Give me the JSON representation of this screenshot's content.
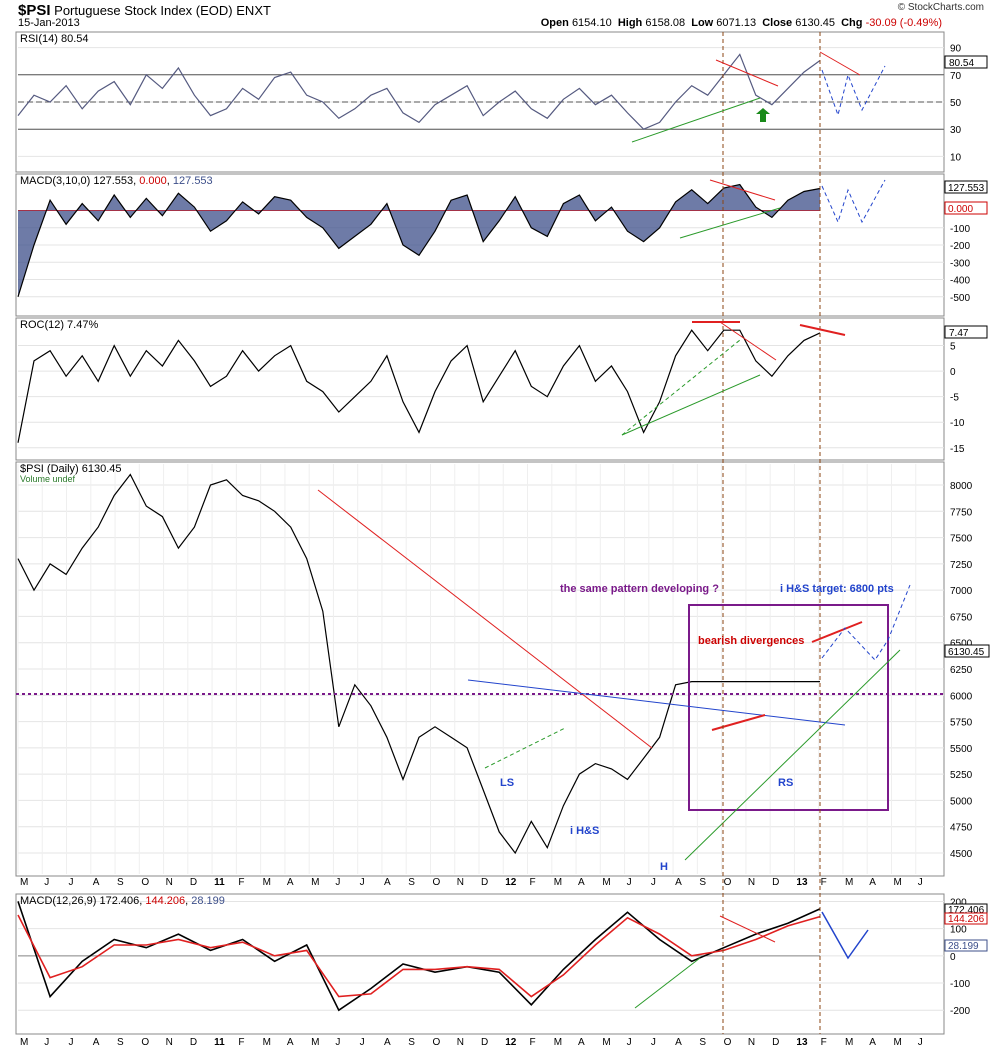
{
  "header": {
    "symbol": "$PSI",
    "title": "Portuguese Stock Index (EOD)",
    "exchange": "ENXT",
    "date": "15-Jan-2013",
    "brand": "© StockCharts.com",
    "open_label": "Open",
    "open": "6154.10",
    "high_label": "High",
    "high": "6158.08",
    "low_label": "Low",
    "low": "6071.13",
    "close_label": "Close",
    "close": "6130.45",
    "chg_label": "Chg",
    "chg": "-30.09 (-0.49%)"
  },
  "x_axis": {
    "months": [
      "M",
      "J",
      "J",
      "A",
      "S",
      "O",
      "N",
      "D",
      "11",
      "F",
      "M",
      "A",
      "M",
      "J",
      "J",
      "A",
      "S",
      "O",
      "N",
      "D",
      "12",
      "F",
      "M",
      "A",
      "M",
      "J",
      "J",
      "A",
      "S",
      "O",
      "N",
      "D",
      "13",
      "F",
      "M",
      "A",
      "M",
      "J"
    ],
    "year_markers": [
      "11",
      "12",
      "13"
    ]
  },
  "colors": {
    "price": "#000000",
    "rsi": "#555a80",
    "hist": "#3d4f8a",
    "red": "#e02020",
    "green": "#2a9a2a",
    "blue": "#2244cc",
    "purple": "#7a1a8a",
    "brown": "#8b4513"
  },
  "chart_data": [
    {
      "type": "line",
      "name": "rsi-panel",
      "legend": "RSI(14) 80.54",
      "last_value_label": "80.54",
      "yticks": [
        10,
        30,
        50,
        70,
        90
      ],
      "ylim": [
        0,
        100
      ],
      "reference_lines": [
        30,
        50,
        70
      ],
      "series": [
        {
          "name": "RSI(14)",
          "x": [
            0,
            0.02,
            0.04,
            0.06,
            0.08,
            0.1,
            0.12,
            0.14,
            0.16,
            0.18,
            0.2,
            0.22,
            0.24,
            0.26,
            0.28,
            0.3,
            0.32,
            0.34,
            0.36,
            0.38,
            0.4,
            0.42,
            0.44,
            0.46,
            0.48,
            0.5,
            0.52,
            0.54,
            0.56,
            0.58,
            0.6,
            0.62,
            0.64,
            0.66,
            0.68,
            0.7,
            0.72,
            0.74,
            0.76,
            0.78,
            0.8,
            0.82,
            0.84,
            0.86,
            0.88,
            0.9,
            0.92,
            0.94,
            0.96,
            0.98,
            1.0
          ],
          "values": [
            40,
            55,
            50,
            62,
            45,
            58,
            65,
            48,
            70,
            60,
            75,
            55,
            40,
            45,
            60,
            52,
            68,
            72,
            55,
            50,
            38,
            45,
            55,
            60,
            42,
            35,
            48,
            55,
            62,
            40,
            50,
            58,
            45,
            38,
            52,
            60,
            48,
            55,
            42,
            30,
            35,
            50,
            62,
            55,
            70,
            85,
            55,
            48,
            60,
            72,
            80.54
          ]
        }
      ]
    },
    {
      "type": "area",
      "name": "macd-3-10-panel",
      "legend_name": "MACD(3,10,0)",
      "legend_v1": "127.553",
      "legend_v2": "0.000",
      "legend_v3": "127.553",
      "last_value_label": "127.553",
      "zero_label": "0.000",
      "yticks": [
        -500,
        -400,
        -300,
        -200,
        -100
      ],
      "ylim": [
        -600,
        200
      ],
      "series": [
        {
          "name": "MACD(3,10,0)",
          "x": [
            0,
            0.02,
            0.04,
            0.06,
            0.08,
            0.1,
            0.12,
            0.14,
            0.16,
            0.18,
            0.2,
            0.22,
            0.24,
            0.26,
            0.28,
            0.3,
            0.32,
            0.34,
            0.36,
            0.38,
            0.4,
            0.42,
            0.44,
            0.46,
            0.48,
            0.5,
            0.52,
            0.54,
            0.56,
            0.58,
            0.6,
            0.62,
            0.64,
            0.66,
            0.68,
            0.7,
            0.72,
            0.74,
            0.76,
            0.78,
            0.8,
            0.82,
            0.84,
            0.86,
            0.88,
            0.9,
            0.92,
            0.94,
            0.96,
            0.98,
            1.0
          ],
          "values": [
            -500,
            -200,
            60,
            -80,
            40,
            -60,
            90,
            -40,
            70,
            -30,
            100,
            20,
            -120,
            -60,
            50,
            -20,
            80,
            60,
            -40,
            -100,
            -220,
            -150,
            -80,
            40,
            -200,
            -260,
            -120,
            60,
            90,
            -180,
            -60,
            80,
            -100,
            -150,
            40,
            90,
            -60,
            20,
            -120,
            -180,
            -100,
            50,
            120,
            40,
            130,
            150,
            20,
            -40,
            60,
            110,
            127.553
          ]
        }
      ]
    },
    {
      "type": "line",
      "name": "roc-panel",
      "legend": "ROC(12) 7.47%",
      "last_value_label": "7.47",
      "yticks": [
        -15,
        -10,
        -5,
        0,
        5
      ],
      "ylim": [
        -17,
        10
      ],
      "series": [
        {
          "name": "ROC(12)",
          "x": [
            0,
            0.02,
            0.04,
            0.06,
            0.08,
            0.1,
            0.12,
            0.14,
            0.16,
            0.18,
            0.2,
            0.22,
            0.24,
            0.26,
            0.28,
            0.3,
            0.32,
            0.34,
            0.36,
            0.38,
            0.4,
            0.42,
            0.44,
            0.46,
            0.48,
            0.5,
            0.52,
            0.54,
            0.56,
            0.58,
            0.6,
            0.62,
            0.64,
            0.66,
            0.68,
            0.7,
            0.72,
            0.74,
            0.76,
            0.78,
            0.8,
            0.82,
            0.84,
            0.86,
            0.88,
            0.9,
            0.92,
            0.94,
            0.96,
            0.98,
            1.0
          ],
          "values": [
            -14,
            2,
            4,
            -1,
            3,
            -2,
            5,
            -1,
            4,
            1,
            6,
            2,
            -3,
            -1,
            4,
            0,
            3,
            5,
            -2,
            -4,
            -8,
            -5,
            -2,
            3,
            -6,
            -12,
            -4,
            2,
            5,
            -6,
            -1,
            4,
            -3,
            -5,
            1,
            5,
            -2,
            1,
            -4,
            -12,
            -6,
            3,
            8,
            4,
            8,
            8,
            2,
            -1,
            3,
            6,
            7.47
          ]
        }
      ]
    },
    {
      "type": "line",
      "name": "price-panel",
      "legend": "$PSI (Daily) 6130.45",
      "legend2": "Volume undef",
      "last_value_label": "6130.45",
      "yticks": [
        4500,
        4750,
        5000,
        5250,
        5500,
        5750,
        6000,
        6250,
        6500,
        6750,
        7000,
        7250,
        7500,
        7750,
        8000
      ],
      "ylim": [
        4300,
        8200
      ],
      "series": [
        {
          "name": "$PSI",
          "x": [
            0,
            0.02,
            0.04,
            0.06,
            0.08,
            0.1,
            0.12,
            0.14,
            0.16,
            0.18,
            0.2,
            0.22,
            0.24,
            0.26,
            0.28,
            0.3,
            0.32,
            0.34,
            0.36,
            0.38,
            0.4,
            0.42,
            0.44,
            0.46,
            0.48,
            0.5,
            0.52,
            0.54,
            0.56,
            0.58,
            0.6,
            0.62,
            0.64,
            0.66,
            0.68,
            0.7,
            0.72,
            0.74,
            0.76,
            0.78,
            0.8,
            0.82,
            0.84,
            0.86,
            0.88,
            0.9,
            0.92,
            0.94,
            0.96,
            0.98,
            1.0
          ],
          "values": [
            7300,
            7000,
            7250,
            7150,
            7400,
            7600,
            7900,
            8100,
            7800,
            7700,
            7400,
            7600,
            8000,
            8050,
            7900,
            7850,
            7750,
            7600,
            7300,
            6800,
            5700,
            6100,
            5900,
            5600,
            5200,
            5600,
            5700,
            5600,
            5500,
            5100,
            4700,
            4500,
            4800,
            4550,
            4950,
            5250,
            5350,
            5300,
            5200,
            5400,
            5600,
            6100,
            6130.45,
            6130.45,
            6130.45,
            6130.45,
            6130.45,
            6130.45,
            6130.45,
            6130.45,
            6130.45
          ]
        }
      ],
      "annotations": [
        "the same pattern developing ?",
        "i H&S target: 6800 pts",
        "bearish divergences",
        "LS",
        "i H&S",
        "H",
        "RS"
      ]
    },
    {
      "type": "line",
      "name": "macd-12-26-9-panel",
      "legend_name": "MACD(12,26,9)",
      "legend_v1": "172.406",
      "legend_v2": "144.206",
      "legend_v3": "28.199",
      "label_macd": "172.406",
      "label_signal": "144.206",
      "label_hist": "28.199",
      "yticks": [
        -200,
        -100,
        0,
        100,
        200
      ],
      "ylim": [
        -280,
        220
      ],
      "series": [
        {
          "name": "MACD",
          "x": [
            0,
            0.04,
            0.08,
            0.12,
            0.16,
            0.2,
            0.24,
            0.28,
            0.32,
            0.36,
            0.4,
            0.44,
            0.48,
            0.52,
            0.56,
            0.6,
            0.64,
            0.68,
            0.72,
            0.76,
            0.8,
            0.84,
            0.88,
            0.92,
            0.96,
            1.0
          ],
          "values": [
            200,
            -150,
            -20,
            60,
            30,
            80,
            20,
            60,
            -20,
            40,
            -200,
            -120,
            -30,
            -60,
            -40,
            -60,
            -180,
            -50,
            60,
            160,
            60,
            -20,
            30,
            80,
            120,
            172.406
          ]
        },
        {
          "name": "Signal",
          "x": [
            0,
            0.04,
            0.08,
            0.12,
            0.16,
            0.2,
            0.24,
            0.28,
            0.32,
            0.36,
            0.4,
            0.44,
            0.48,
            0.52,
            0.56,
            0.6,
            0.64,
            0.68,
            0.72,
            0.76,
            0.8,
            0.84,
            0.88,
            0.92,
            0.96,
            1.0
          ],
          "values": [
            150,
            -80,
            -40,
            40,
            40,
            60,
            30,
            50,
            0,
            20,
            -150,
            -140,
            -50,
            -50,
            -40,
            -50,
            -150,
            -70,
            40,
            140,
            80,
            0,
            20,
            60,
            110,
            144.206
          ]
        }
      ]
    }
  ]
}
